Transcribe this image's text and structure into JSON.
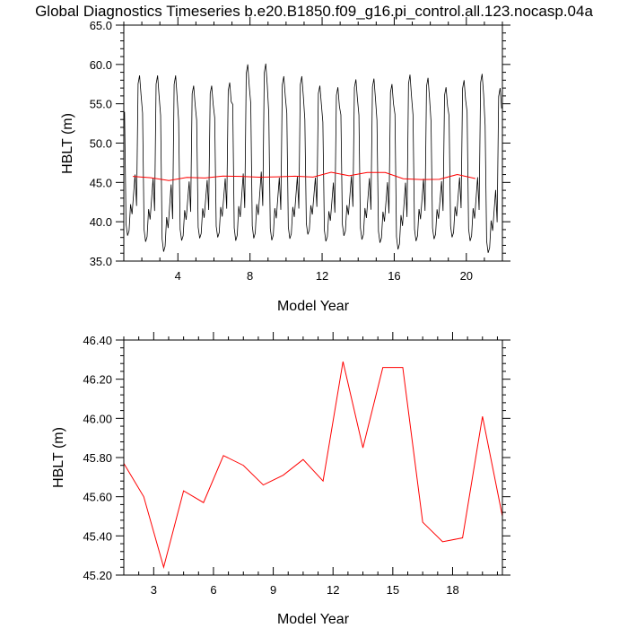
{
  "title": "Global Diagnostics Timeseries b.e20.B1850.f09_g16.pi_control.all.123.nocasp.04a",
  "chart_data": [
    {
      "type": "line",
      "title": "Global Diagnostics Timeseries b.e20.B1850.f09_g16.pi_control.all.123.nocasp.04a",
      "xlabel": "Model Year",
      "ylabel": "HBLT (m)",
      "xlim": [
        1.0,
        22.0
      ],
      "ylim": [
        35.0,
        65.0
      ],
      "xticks": [
        4,
        8,
        12,
        16,
        20
      ],
      "xtick_labels": [
        "4",
        "8",
        "12",
        "16",
        "20"
      ],
      "yticks": [
        35,
        40,
        45,
        50,
        55,
        60,
        65
      ],
      "ytick_labels": [
        "35.0",
        "40.0",
        "45.0",
        "50.0",
        "55.0",
        "60.0",
        "65.0"
      ],
      "grid": false,
      "colors": {
        "monthly": "#000000",
        "annual": "#ff0000"
      },
      "series": [
        {
          "role": "monthly",
          "color": "#000000",
          "peaks": [
            58.6,
            58.6,
            58.6,
            57.3,
            57.3,
            57.7,
            60.0,
            60.1,
            58.5,
            58.5,
            57.3,
            57.1,
            58.1,
            58.2,
            57.5,
            58.7,
            58.3,
            57.1,
            58.0,
            58.8,
            57.0
          ],
          "troughs": [
            37.6,
            36.8,
            35.5,
            37.0,
            37.3,
            37.4,
            36.9,
            37.2,
            37.0,
            37.2,
            37.8,
            36.9,
            37.6,
            37.1,
            36.7,
            35.8,
            36.9,
            37.2,
            37.4,
            36.9,
            35.4
          ]
        },
        {
          "role": "annual",
          "color": "#ff0000",
          "x": [
            1.5,
            2.5,
            3.5,
            4.5,
            5.5,
            6.5,
            7.5,
            8.5,
            9.5,
            10.5,
            11.5,
            12.5,
            13.5,
            14.5,
            15.5,
            16.5,
            17.5,
            18.5,
            19.5,
            20.5
          ],
          "values": [
            45.77,
            45.6,
            45.24,
            45.63,
            45.57,
            45.81,
            45.76,
            45.66,
            45.71,
            45.79,
            45.68,
            46.29,
            45.85,
            46.26,
            46.26,
            45.47,
            45.37,
            45.39,
            46.01,
            45.5
          ]
        }
      ]
    },
    {
      "type": "line",
      "xlabel": "Model Year",
      "ylabel": "HBLT (m)",
      "xlim": [
        1.5,
        20.5
      ],
      "ylim": [
        45.2,
        46.4
      ],
      "xticks": [
        3,
        6,
        9,
        12,
        15,
        18
      ],
      "xtick_labels": [
        "3",
        "6",
        "9",
        "12",
        "15",
        "18"
      ],
      "yticks": [
        45.2,
        45.4,
        45.6,
        45.8,
        46.0,
        46.2,
        46.4
      ],
      "ytick_labels": [
        "45.20",
        "45.40",
        "45.60",
        "45.80",
        "46.00",
        "46.20",
        "46.40"
      ],
      "grid": false,
      "colors": {
        "line": "#ff0000"
      },
      "series": [
        {
          "color": "#ff0000",
          "x": [
            1.5,
            2.5,
            3.5,
            4.5,
            5.5,
            6.5,
            7.5,
            8.5,
            9.5,
            10.5,
            11.5,
            12.5,
            13.5,
            14.5,
            15.5,
            16.5,
            17.5,
            18.5,
            19.5,
            20.5
          ],
          "values": [
            45.77,
            45.6,
            45.24,
            45.63,
            45.57,
            45.81,
            45.76,
            45.66,
            45.71,
            45.79,
            45.68,
            46.29,
            45.85,
            46.26,
            46.26,
            45.47,
            45.37,
            45.39,
            46.01,
            45.5
          ]
        }
      ]
    }
  ]
}
